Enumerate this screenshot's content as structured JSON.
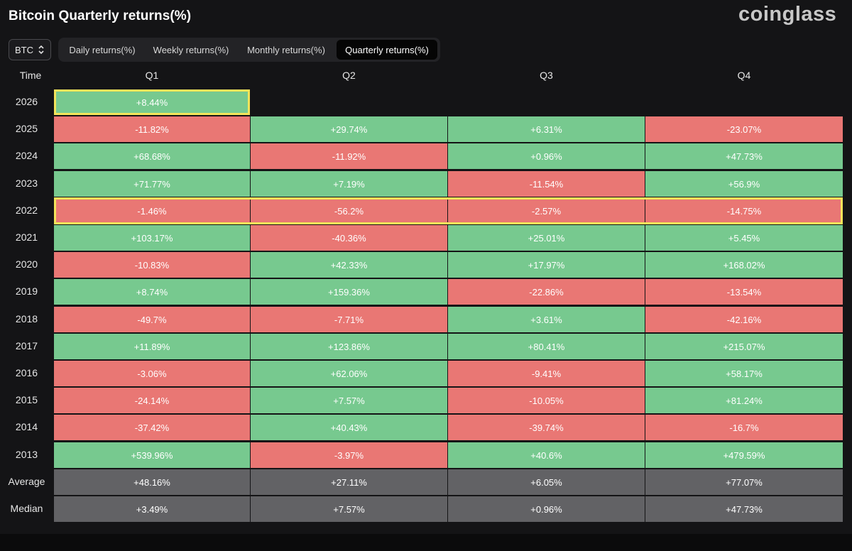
{
  "title": "Bitcoin Quarterly returns(%)",
  "brand": "coinglass",
  "asset_select": {
    "value": "BTC",
    "icon": "chevron-up-down-icon"
  },
  "tabs": [
    {
      "label": "Daily returns(%)",
      "active": false
    },
    {
      "label": "Weekly returns(%)",
      "active": false
    },
    {
      "label": "Monthly returns(%)",
      "active": false
    },
    {
      "label": "Quarterly returns(%)",
      "active": true
    }
  ],
  "table": {
    "headers": [
      "Time",
      "Q1",
      "Q2",
      "Q3",
      "Q4"
    ],
    "rows": [
      {
        "label": "2026",
        "values": [
          "+8.44%",
          "",
          "",
          ""
        ],
        "highlight": "cell-0"
      },
      {
        "label": "2025",
        "values": [
          "-11.82%",
          "+29.74%",
          "+6.31%",
          "-23.07%"
        ]
      },
      {
        "label": "2024",
        "values": [
          "+68.68%",
          "-11.92%",
          "+0.96%",
          "+47.73%"
        ]
      },
      {
        "label": "2023",
        "values": [
          "+71.77%",
          "+7.19%",
          "-11.54%",
          "+56.9%"
        ]
      },
      {
        "label": "2022",
        "values": [
          "-1.46%",
          "-56.2%",
          "-2.57%",
          "-14.75%"
        ],
        "highlight": "row"
      },
      {
        "label": "2021",
        "values": [
          "+103.17%",
          "-40.36%",
          "+25.01%",
          "+5.45%"
        ]
      },
      {
        "label": "2020",
        "values": [
          "-10.83%",
          "+42.33%",
          "+17.97%",
          "+168.02%"
        ]
      },
      {
        "label": "2019",
        "values": [
          "+8.74%",
          "+159.36%",
          "-22.86%",
          "-13.54%"
        ]
      },
      {
        "label": "2018",
        "values": [
          "-49.7%",
          "-7.71%",
          "+3.61%",
          "-42.16%"
        ]
      },
      {
        "label": "2017",
        "values": [
          "+11.89%",
          "+123.86%",
          "+80.41%",
          "+215.07%"
        ]
      },
      {
        "label": "2016",
        "values": [
          "-3.06%",
          "+62.06%",
          "-9.41%",
          "+58.17%"
        ]
      },
      {
        "label": "2015",
        "values": [
          "-24.14%",
          "+7.57%",
          "-10.05%",
          "+81.24%"
        ]
      },
      {
        "label": "2014",
        "values": [
          "-37.42%",
          "+40.43%",
          "-39.74%",
          "-16.7%"
        ]
      },
      {
        "label": "2013",
        "values": [
          "+539.96%",
          "-3.97%",
          "+40.6%",
          "+479.59%"
        ]
      }
    ],
    "stats": [
      {
        "label": "Average",
        "values": [
          "+48.16%",
          "+27.11%",
          "+6.05%",
          "+77.07%"
        ]
      },
      {
        "label": "Median",
        "values": [
          "+3.49%",
          "+7.57%",
          "+0.96%",
          "+47.73%"
        ]
      }
    ]
  },
  "colors": {
    "positive": "#77c98f",
    "negative": "#e97774",
    "stat": "#626265",
    "highlight": "#f2e35a"
  }
}
